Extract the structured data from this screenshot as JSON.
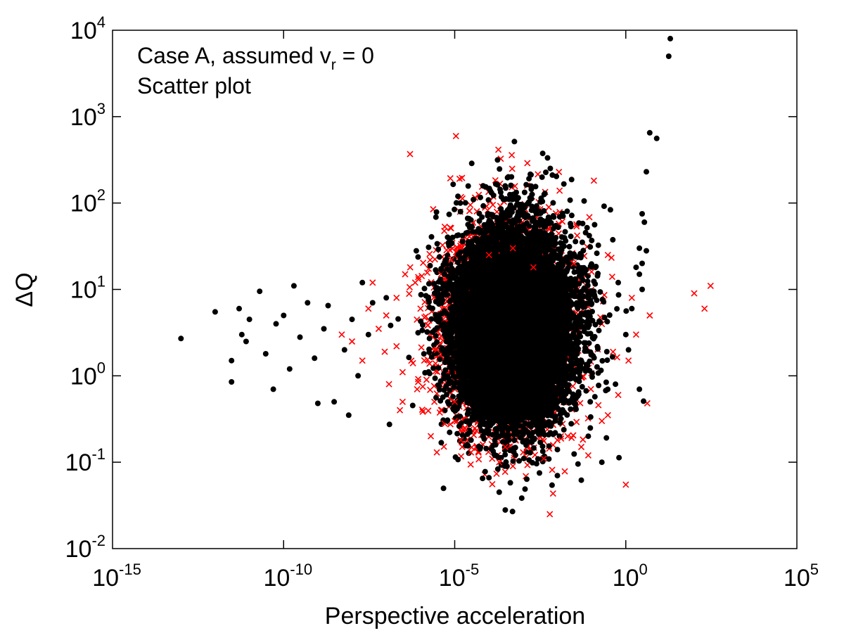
{
  "chart_data": {
    "type": "scatter",
    "title": "",
    "xlabel": "Perspective acceleration",
    "ylabel": "ΔQ",
    "xscale": "log",
    "yscale": "log",
    "xlim": [
      1e-15,
      100000.0
    ],
    "ylim": [
      0.01,
      10000
    ],
    "grid": false,
    "annotations": [
      {
        "text": "Case A, assumed v",
        "subscript": "r",
        "suffix": " = 0"
      },
      {
        "text": "Scatter plot"
      }
    ],
    "x_ticks": [
      {
        "base": "10",
        "exp": "-15"
      },
      {
        "base": "10",
        "exp": "-10"
      },
      {
        "base": "10",
        "exp": "-5"
      },
      {
        "base": "10",
        "exp": "0"
      },
      {
        "base": "10",
        "exp": "5"
      }
    ],
    "y_ticks": [
      {
        "base": "10",
        "exp": "-2"
      },
      {
        "base": "10",
        "exp": "-1"
      },
      {
        "base": "10",
        "exp": "0"
      },
      {
        "base": "10",
        "exp": "1"
      },
      {
        "base": "10",
        "exp": "2"
      },
      {
        "base": "10",
        "exp": "3"
      },
      {
        "base": "10",
        "exp": "4"
      }
    ],
    "series": [
      {
        "marker": "cross",
        "color": "#ff0000",
        "points": [
          [
            5e-09,
            3.0
          ],
          [
            2e-08,
            1.5
          ],
          [
            1.2e-07,
            0.8
          ],
          [
            3e-07,
            0.5
          ],
          [
            1e-07,
            5.0
          ],
          [
            3e-06,
            0.13
          ],
          [
            3e-05,
            0.13
          ],
          [
            0.0002,
            0.1
          ],
          [
            0.0005,
            0.09
          ],
          [
            0.006,
            0.025
          ],
          [
            1.0,
            0.055
          ],
          [
            0.0005,
            30.0
          ],
          [
            0.3,
            25.0
          ],
          [
            5e-07,
            18.0
          ],
          [
            4e-08,
            12.0
          ],
          [
            8e-06,
            22.0
          ],
          [
            0.03,
            20.0
          ],
          [
            1e-05,
            0.5
          ],
          [
            0.08,
            0.12
          ],
          [
            0.05,
            0.15
          ],
          [
            2e-06,
            0.2
          ],
          [
            100,
            9.0
          ],
          [
            200,
            6.0
          ],
          [
            300,
            11.0
          ],
          [
            5.0,
            5.0
          ],
          [
            1e-06,
            6.0
          ],
          [
            3e-06,
            2.0
          ],
          [
            1e-05,
            0.3
          ],
          [
            0.2,
            0.3
          ],
          [
            0.0003,
            0.15
          ],
          [
            1.5e-06,
            0.9
          ],
          [
            6e-07,
            1.4
          ],
          [
            2e-07,
            2.2
          ],
          [
            4e-06,
            0.4
          ],
          [
            2e-05,
            0.25
          ],
          [
            0.01,
            0.18
          ],
          [
            0.004,
            0.11
          ],
          [
            0.001,
            0.13
          ],
          [
            2.5e-07,
            0.4
          ],
          [
            1e-08,
            2.5
          ],
          [
            3e-08,
            6.0
          ],
          [
            6e-08,
            3.5
          ],
          [
            2e-07,
            8.0
          ],
          [
            7e-07,
            12.0
          ],
          [
            4e-06,
            15.0
          ],
          [
            0.0001,
            25.0
          ],
          [
            0.002,
            18.0
          ],
          [
            0.1,
            16.0
          ],
          [
            0.4,
            14.0
          ],
          [
            1.5,
            8.0
          ],
          [
            2.0,
            3.0
          ],
          [
            1.2,
            1.5
          ],
          [
            0.6,
            0.6
          ],
          [
            0.3,
            0.35
          ],
          [
            0.02,
            0.2
          ],
          [
            1.5e-05,
            0.18
          ],
          [
            5e-06,
            0.28
          ],
          [
            8e-07,
            0.7
          ],
          [
            3e-07,
            1.1
          ],
          [
            9e-08,
            1.9
          ]
        ]
      },
      {
        "marker": "dot",
        "color": "#000000",
        "points": [
          [
            1e-13,
            2.7
          ],
          [
            3e-12,
            0.85
          ],
          [
            3e-12,
            1.5
          ],
          [
            5e-12,
            6.0
          ],
          [
            6e-12,
            3.0
          ],
          [
            1e-11,
            4.5
          ],
          [
            2e-11,
            9.5
          ],
          [
            5e-11,
            0.7
          ],
          [
            1e-10,
            5.0
          ],
          [
            2e-10,
            11.0
          ],
          [
            5e-10,
            7.0
          ],
          [
            1e-09,
            0.48
          ],
          [
            1.5e-09,
            3.5
          ],
          [
            3e-09,
            0.5
          ],
          [
            8e-09,
            0.35
          ],
          [
            2e-08,
            12.0
          ],
          [
            4e-08,
            7.0
          ],
          [
            1e-08,
            4.5
          ],
          [
            1e-12,
            5.5
          ],
          [
            8e-12,
            2.5
          ],
          [
            3e-11,
            1.8
          ],
          [
            6e-11,
            4.0
          ],
          [
            1.5e-10,
            1.2
          ],
          [
            3e-10,
            2.8
          ],
          [
            8e-10,
            1.6
          ],
          [
            2e-09,
            6.5
          ],
          [
            6e-09,
            2.0
          ],
          [
            1.5e-08,
            1.0
          ],
          [
            3e-08,
            3.0
          ],
          [
            1e-07,
            8.0
          ],
          [
            0.0002,
            0.045
          ],
          [
            0.0003,
            0.028
          ],
          [
            0.003,
            0.075
          ],
          [
            0.01,
            0.07
          ],
          [
            0.05,
            0.062
          ],
          [
            0.2,
            0.1
          ],
          [
            20,
            8000
          ],
          [
            18,
            5000
          ],
          [
            5,
            650
          ],
          [
            8,
            560
          ],
          [
            4,
            230
          ],
          [
            3,
            75
          ],
          [
            3.5,
            60
          ],
          [
            2.5,
            30
          ],
          [
            4,
            28
          ],
          [
            3,
            20
          ],
          [
            2,
            18
          ],
          [
            2.5,
            15
          ],
          [
            3,
            10
          ],
          [
            1.5,
            6.0
          ],
          [
            1.0,
            3.0
          ],
          [
            2.5,
            0.7
          ],
          [
            0.5,
            0.8
          ],
          [
            0.05,
            25.0
          ],
          [
            0.08,
            0.2
          ],
          [
            6e-06,
            0.3
          ],
          [
            0.00015,
            0.12
          ],
          [
            5e-05,
            0.35
          ],
          [
            0.01,
            0.14
          ],
          [
            0.6,
            12.0
          ],
          [
            1.2,
            2.0
          ],
          [
            0.001,
            20.0
          ],
          [
            5e-06,
            15.0
          ],
          [
            3e-05,
            0.18
          ]
        ]
      }
    ],
    "clouds": [
      {
        "color": "#ff0000",
        "cx": 0.0003,
        "cy": 4.0,
        "spread_x": 0.9,
        "spread_y": 0.58,
        "count": 4000,
        "seed": 11
      },
      {
        "color": "#000000",
        "cx": 0.0005,
        "cy": 3.8,
        "spread_x": 0.9,
        "spread_y": 0.56,
        "count": 9000,
        "seed": 23
      },
      {
        "color": "#000000",
        "cx": 0.0005,
        "cy": 3.2,
        "spread_x": 0.58,
        "spread_y": 0.36,
        "count": 9000,
        "seed": 37
      }
    ]
  }
}
